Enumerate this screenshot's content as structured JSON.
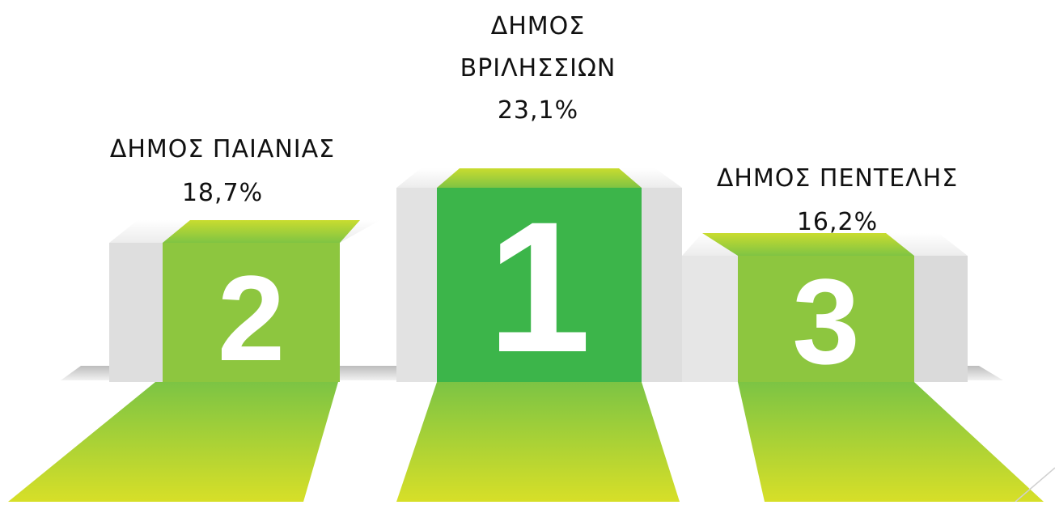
{
  "podium": {
    "first": {
      "rank": "1",
      "line1": "ΔΗΜΟΣ",
      "line2": "ΒΡΙΛΗΣΣΙΩΝ",
      "percent": "23,1%"
    },
    "second": {
      "rank": "2",
      "line1": "ΔΗΜΟΣ ΠΑΙΑΝΙΑΣ",
      "percent": "18,7%"
    },
    "third": {
      "rank": "3",
      "line1": "ΔΗΜΟΣ ΠΕΝΤΕΛΗΣ",
      "percent": "16,2%"
    }
  },
  "colors": {
    "green_dark": "#3cb54a",
    "green_light": "#8dc63f",
    "yellow": "#d6e02a",
    "gray": "#e8e8e8"
  }
}
